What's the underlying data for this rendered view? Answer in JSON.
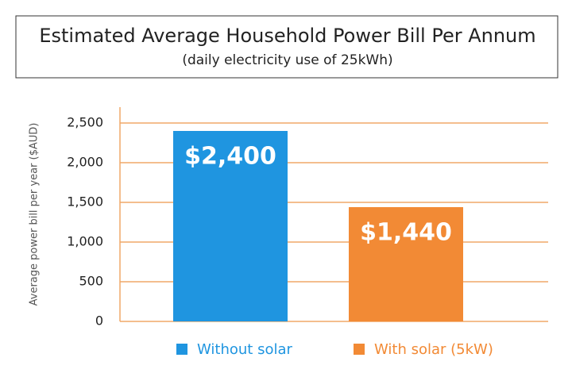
{
  "chart_data": {
    "type": "bar",
    "title": "Estimated Average Household Power Bill Per Annum",
    "subtitle": "(daily electricity use of 25kWh)",
    "ylabel": "Average power bill per year ($AUD)",
    "series": [
      {
        "name": "Without solar",
        "color": "#1f95e0",
        "values": [
          2400
        ],
        "value_labels": [
          "$2,400"
        ]
      },
      {
        "name": "With solar (5kW)",
        "color": "#f28a35",
        "values": [
          1440
        ],
        "value_labels": [
          "$1,440"
        ]
      }
    ],
    "ylim": [
      0,
      2700
    ],
    "yticks": [
      0,
      500,
      {
        "value": 1000,
        "label": "1,000"
      },
      {
        "value": 1500,
        "label": "1,500"
      },
      {
        "value": 2000,
        "label": "2,000"
      },
      {
        "value": 2500,
        "label": "2,500"
      }
    ],
    "grid": true,
    "grid_color": "#f0a868"
  }
}
